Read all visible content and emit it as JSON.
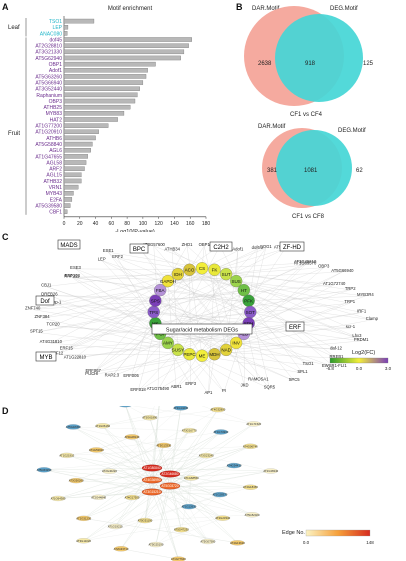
{
  "panels": {
    "A": {
      "letter": "A",
      "title": "Motif enrichment",
      "xlabel": "-Log10(P-value)",
      "group_leaf": "Leaf",
      "group_fruit": "Fruit",
      "ticks": [
        "0",
        "20",
        "40",
        "60",
        "80",
        "100",
        "120",
        "140",
        "160",
        "180"
      ]
    },
    "B": {
      "letter": "B",
      "venn1": {
        "left_label": "DAR.Motif",
        "right_label": "DEG.Motif",
        "left": "2638",
        "mid": "918",
        "right": "125",
        "caption": "CF1 vs CF4"
      },
      "venn2": {
        "left_label": "DAR.Motif",
        "right_label": "DEG.Motif",
        "left": "381",
        "mid": "1081",
        "right": "62",
        "caption": "CF1 vs CF8"
      }
    },
    "C": {
      "letter": "C",
      "families": {
        "mads": "MADS",
        "bpc": "BPC",
        "c2h2": "C2H2",
        "zfhd": "ZF-HD",
        "dof": "Dof",
        "erf": "ERF",
        "myb": "MYB"
      },
      "center_label": "Sugar/acid metabolism DEGs",
      "legend_title": "Log2(FC)",
      "legend_ticks": [
        "-6.8",
        "0.0",
        "3.0"
      ]
    },
    "D": {
      "letter": "D",
      "legend_title": "Edge No.",
      "legend_ticks": [
        "0.0",
        "148"
      ]
    }
  },
  "chart_data": {
    "type": "bar",
    "title": "Motif enrichment",
    "xlabel": "-Log10(P-value)",
    "xlim": [
      0,
      180
    ],
    "categories": [
      "TSO1",
      "LEP",
      "ANAC080",
      "dof45",
      "AT2G28810",
      "AT3G21330",
      "AT5G62940",
      "OBP1",
      "Adof1",
      "AT5G63260",
      "AT5G66940",
      "AT3G52440",
      "Raphanium",
      "OBP3",
      "ATHB25",
      "MYB83",
      "HAT2",
      "AT1G77200",
      "AT1G20910",
      "ATHB6",
      "AT5G58840",
      "AGL6",
      "AT1G47655",
      "AGL58",
      "ARF2",
      "AGL15",
      "ATHB32",
      "VRN1",
      "MYB43",
      "E2FA",
      "AT5G39580",
      "CBF1"
    ],
    "values": [
      38,
      5,
      4,
      162,
      158,
      152,
      148,
      116,
      106,
      104,
      100,
      96,
      93,
      90,
      84,
      76,
      68,
      56,
      44,
      40,
      36,
      34,
      30,
      28,
      26,
      22,
      22,
      18,
      12,
      10,
      8,
      4
    ],
    "label_colors": [
      "#1fb5c8",
      "#1fb5c8",
      "#1fb5c8",
      "#6a2c8c",
      "#6a2c8c",
      "#6a2c8c",
      "#6a2c8c",
      "#6a2c8c",
      "#6a2c8c",
      "#6a2c8c",
      "#6a2c8c",
      "#6a2c8c",
      "#6a2c8c",
      "#6a2c8c",
      "#6a2c8c",
      "#6a2c8c",
      "#6a2c8c",
      "#6a2c8c",
      "#6a2c8c",
      "#6a2c8c",
      "#6a2c8c",
      "#6a2c8c",
      "#6a2c8c",
      "#6a2c8c",
      "#6a2c8c",
      "#6a2c8c",
      "#6a2c8c",
      "#6a2c8c",
      "#6a2c8c",
      "#6a2c8c",
      "#6a2c8c",
      "#6a2c8c"
    ]
  },
  "network_c": {
    "ring_genes": [
      "CS",
      "FK",
      "SUT",
      "SUS",
      "HT",
      "PFK",
      "SOT",
      "SDH",
      "ALD",
      "INV",
      "NAD",
      "MDH",
      "ME",
      "PEPC",
      "SUSY",
      "AMY",
      "PGI",
      "HK",
      "TPS",
      "SPS",
      "FBA",
      "GAPDH",
      "IDH",
      "ACO"
    ],
    "tfs": [
      "ATHB34",
      "ZHD1",
      "OBP1",
      "AT2G28810",
      "Adof1",
      "dof6.2",
      "COG1",
      "AT5G02460",
      "AT3G45610",
      "AT1G69570",
      "OBP3",
      "AT5G66940",
      "AT1G72740",
      "TRP2",
      "MYB3R4",
      "TRP1",
      "IRF1",
      "Clamp",
      "scr-1",
      "Lhx3",
      "PRDM1",
      "daf-12",
      "RREB1",
      "EWSR1-FLI1",
      "TSO1",
      "SPL1",
      "SPC5",
      "SQR5",
      "RAMOSA1",
      "JKD",
      "PI",
      "AP1",
      "ERF3",
      "ABR1",
      "AT1G75490",
      "ERF018",
      "ERF005",
      "RAP2.3",
      "PUCHI",
      "ERF067",
      "AT1G22810",
      "ERF12",
      "ERF15",
      "AT4G31810",
      "SPT15",
      "TCP20",
      "ZNF384",
      "ZNF740",
      "blmp-1",
      "DREB26",
      "CBJ1",
      "RAP211",
      "ERF104",
      "ESE3",
      "LEP",
      "ESE1",
      "ERF2",
      "ERF3",
      "AT3G57600"
    ]
  },
  "network_d": {
    "hub_genes": [
      "AT1G80840",
      "AT2G46680",
      "AT4G36990",
      "AT5G03720",
      "AT3G15210"
    ],
    "nodes": [
      "AT1G68550",
      "AT4G17500",
      "AT5G13330",
      "AT1G12630",
      "AT2G40220",
      "AT3G23240",
      "AT5G51190",
      "AT4G28140",
      "AT1G28370",
      "AT2G44840",
      "AT3G16770",
      "AT5G47230",
      "AT1G53910",
      "AT4G34410",
      "AT1G19210",
      "AT5G61890",
      "AT2G23340",
      "AT3G50260",
      "AT1G74930",
      "AT5G25190",
      "AT1G06160",
      "AT4G18450",
      "AT2G31230",
      "AT3G14230",
      "AT5G07580",
      "AT1G21910",
      "AT4G06746",
      "AT2G33710",
      "AT3G61630",
      "AT5G52020",
      "AT1G64380",
      "AT4G32800",
      "AT1G77640",
      "AT5G18450",
      "AT2G38340",
      "AT3G11020",
      "AT1G46768",
      "AT4G13620",
      "AT5G53290",
      "AT1G71520"
    ]
  }
}
